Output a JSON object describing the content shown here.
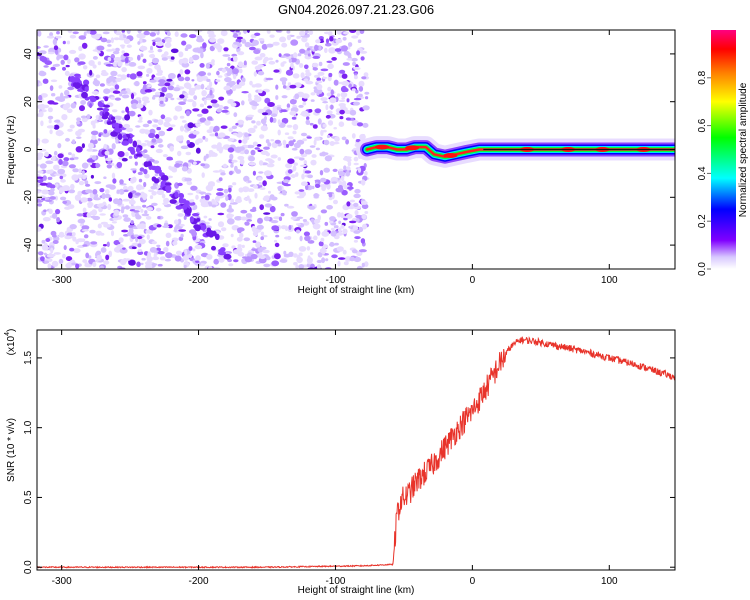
{
  "title": "GN04.2026.097.21.23.G06",
  "chart_data": [
    {
      "type": "heatmap",
      "xlabel": "Height of straight line (km)",
      "ylabel": "Frequency (Hz)",
      "xlim": [
        -318,
        148
      ],
      "ylim": [
        -50,
        50
      ],
      "xticks": [
        -300,
        -200,
        -100,
        0,
        100
      ],
      "yticks": [
        -40,
        -20,
        0,
        20,
        40
      ],
      "noise_region_x": [
        -318,
        -77
      ],
      "signal_track": [
        {
          "x": -77,
          "y": 0
        },
        {
          "x": -70,
          "y": 1
        },
        {
          "x": -62,
          "y": 1
        },
        {
          "x": -55,
          "y": 0
        },
        {
          "x": -48,
          "y": 0
        },
        {
          "x": -42,
          "y": 1
        },
        {
          "x": -34,
          "y": 1
        },
        {
          "x": -28,
          "y": -2
        },
        {
          "x": -20,
          "y": -3
        },
        {
          "x": -12,
          "y": -2
        },
        {
          "x": -4,
          "y": -1
        },
        {
          "x": 5,
          "y": 0
        },
        {
          "x": 148,
          "y": 0
        }
      ],
      "colorbar": {
        "label": "Normalized spectral amplitude",
        "range": [
          0,
          1
        ],
        "ticks": [
          "0.0",
          "0.2",
          "0.4",
          "0.6",
          "0.8"
        ],
        "colors": [
          "#ffffff",
          "#c8b4ff",
          "#8000ff",
          "#0000ff",
          "#00ffff",
          "#00ff00",
          "#ffff00",
          "#ff8000",
          "#ff0000",
          "#ff0080"
        ]
      }
    },
    {
      "type": "line",
      "xlabel": "Height of straight line (km)",
      "ylabel": "SNR (10 * v/v)",
      "yscale_label": "(x10",
      "yscale_exp": "4",
      "yscale_close": ")",
      "xlim": [
        -318,
        148
      ],
      "ylim": [
        -0.02,
        1.7
      ],
      "xticks": [
        -300,
        -200,
        -100,
        0,
        100
      ],
      "yticks": [
        "0.0",
        "0.5",
        "1.0",
        "1.5"
      ],
      "color": "#e8332a",
      "x": [
        -318,
        -250,
        -150,
        -80,
        -58,
        -55,
        -52,
        -47,
        -40,
        -30,
        -20,
        -10,
        0,
        10,
        20,
        28,
        35,
        45,
        60,
        80,
        100,
        120,
        148
      ],
      "y": [
        0.0,
        0.0,
        0.0,
        0.01,
        0.02,
        0.38,
        0.48,
        0.52,
        0.62,
        0.72,
        0.86,
        1.0,
        1.12,
        1.28,
        1.46,
        1.58,
        1.63,
        1.62,
        1.59,
        1.55,
        1.5,
        1.45,
        1.36
      ]
    }
  ]
}
